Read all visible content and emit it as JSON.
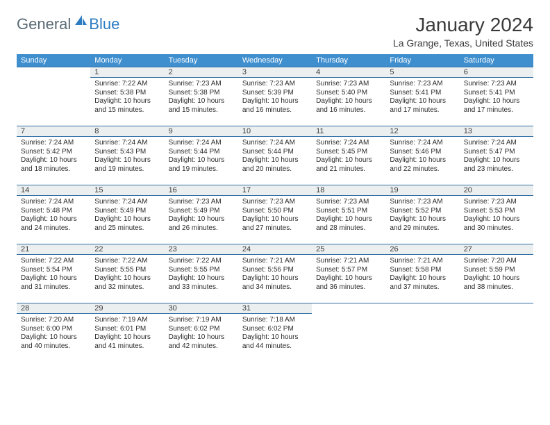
{
  "brand": {
    "general": "General",
    "blue": "Blue"
  },
  "title": "January 2024",
  "location": "La Grange, Texas, United States",
  "colors": {
    "header_bg": "#3f8fcf",
    "header_text": "#ffffff",
    "rule": "#2f6ea2",
    "daynum_bg": "#eceff0",
    "text": "#333333",
    "brand_gray": "#5a6b76",
    "brand_blue": "#2e7cc2",
    "page_bg": "#ffffff"
  },
  "typography": {
    "title_fontsize": 28,
    "location_fontsize": 14,
    "weekday_fontsize": 11,
    "daynum_fontsize": 11,
    "body_fontsize": 10
  },
  "layout": {
    "columns": 7,
    "rows": 5,
    "first_weekday_index": 1
  },
  "weekdays": [
    "Sunday",
    "Monday",
    "Tuesday",
    "Wednesday",
    "Thursday",
    "Friday",
    "Saturday"
  ],
  "days": [
    {
      "n": 1,
      "sunrise": "7:22 AM",
      "sunset": "5:38 PM",
      "daylight": "10 hours and 15 minutes."
    },
    {
      "n": 2,
      "sunrise": "7:23 AM",
      "sunset": "5:38 PM",
      "daylight": "10 hours and 15 minutes."
    },
    {
      "n": 3,
      "sunrise": "7:23 AM",
      "sunset": "5:39 PM",
      "daylight": "10 hours and 16 minutes."
    },
    {
      "n": 4,
      "sunrise": "7:23 AM",
      "sunset": "5:40 PM",
      "daylight": "10 hours and 16 minutes."
    },
    {
      "n": 5,
      "sunrise": "7:23 AM",
      "sunset": "5:41 PM",
      "daylight": "10 hours and 17 minutes."
    },
    {
      "n": 6,
      "sunrise": "7:23 AM",
      "sunset": "5:41 PM",
      "daylight": "10 hours and 17 minutes."
    },
    {
      "n": 7,
      "sunrise": "7:24 AM",
      "sunset": "5:42 PM",
      "daylight": "10 hours and 18 minutes."
    },
    {
      "n": 8,
      "sunrise": "7:24 AM",
      "sunset": "5:43 PM",
      "daylight": "10 hours and 19 minutes."
    },
    {
      "n": 9,
      "sunrise": "7:24 AM",
      "sunset": "5:44 PM",
      "daylight": "10 hours and 19 minutes."
    },
    {
      "n": 10,
      "sunrise": "7:24 AM",
      "sunset": "5:44 PM",
      "daylight": "10 hours and 20 minutes."
    },
    {
      "n": 11,
      "sunrise": "7:24 AM",
      "sunset": "5:45 PM",
      "daylight": "10 hours and 21 minutes."
    },
    {
      "n": 12,
      "sunrise": "7:24 AM",
      "sunset": "5:46 PM",
      "daylight": "10 hours and 22 minutes."
    },
    {
      "n": 13,
      "sunrise": "7:24 AM",
      "sunset": "5:47 PM",
      "daylight": "10 hours and 23 minutes."
    },
    {
      "n": 14,
      "sunrise": "7:24 AM",
      "sunset": "5:48 PM",
      "daylight": "10 hours and 24 minutes."
    },
    {
      "n": 15,
      "sunrise": "7:24 AM",
      "sunset": "5:49 PM",
      "daylight": "10 hours and 25 minutes."
    },
    {
      "n": 16,
      "sunrise": "7:23 AM",
      "sunset": "5:49 PM",
      "daylight": "10 hours and 26 minutes."
    },
    {
      "n": 17,
      "sunrise": "7:23 AM",
      "sunset": "5:50 PM",
      "daylight": "10 hours and 27 minutes."
    },
    {
      "n": 18,
      "sunrise": "7:23 AM",
      "sunset": "5:51 PM",
      "daylight": "10 hours and 28 minutes."
    },
    {
      "n": 19,
      "sunrise": "7:23 AM",
      "sunset": "5:52 PM",
      "daylight": "10 hours and 29 minutes."
    },
    {
      "n": 20,
      "sunrise": "7:23 AM",
      "sunset": "5:53 PM",
      "daylight": "10 hours and 30 minutes."
    },
    {
      "n": 21,
      "sunrise": "7:22 AM",
      "sunset": "5:54 PM",
      "daylight": "10 hours and 31 minutes."
    },
    {
      "n": 22,
      "sunrise": "7:22 AM",
      "sunset": "5:55 PM",
      "daylight": "10 hours and 32 minutes."
    },
    {
      "n": 23,
      "sunrise": "7:22 AM",
      "sunset": "5:55 PM",
      "daylight": "10 hours and 33 minutes."
    },
    {
      "n": 24,
      "sunrise": "7:21 AM",
      "sunset": "5:56 PM",
      "daylight": "10 hours and 34 minutes."
    },
    {
      "n": 25,
      "sunrise": "7:21 AM",
      "sunset": "5:57 PM",
      "daylight": "10 hours and 36 minutes."
    },
    {
      "n": 26,
      "sunrise": "7:21 AM",
      "sunset": "5:58 PM",
      "daylight": "10 hours and 37 minutes."
    },
    {
      "n": 27,
      "sunrise": "7:20 AM",
      "sunset": "5:59 PM",
      "daylight": "10 hours and 38 minutes."
    },
    {
      "n": 28,
      "sunrise": "7:20 AM",
      "sunset": "6:00 PM",
      "daylight": "10 hours and 40 minutes."
    },
    {
      "n": 29,
      "sunrise": "7:19 AM",
      "sunset": "6:01 PM",
      "daylight": "10 hours and 41 minutes."
    },
    {
      "n": 30,
      "sunrise": "7:19 AM",
      "sunset": "6:02 PM",
      "daylight": "10 hours and 42 minutes."
    },
    {
      "n": 31,
      "sunrise": "7:18 AM",
      "sunset": "6:02 PM",
      "daylight": "10 hours and 44 minutes."
    }
  ],
  "labels": {
    "sunrise": "Sunrise:",
    "sunset": "Sunset:",
    "daylight": "Daylight:"
  }
}
